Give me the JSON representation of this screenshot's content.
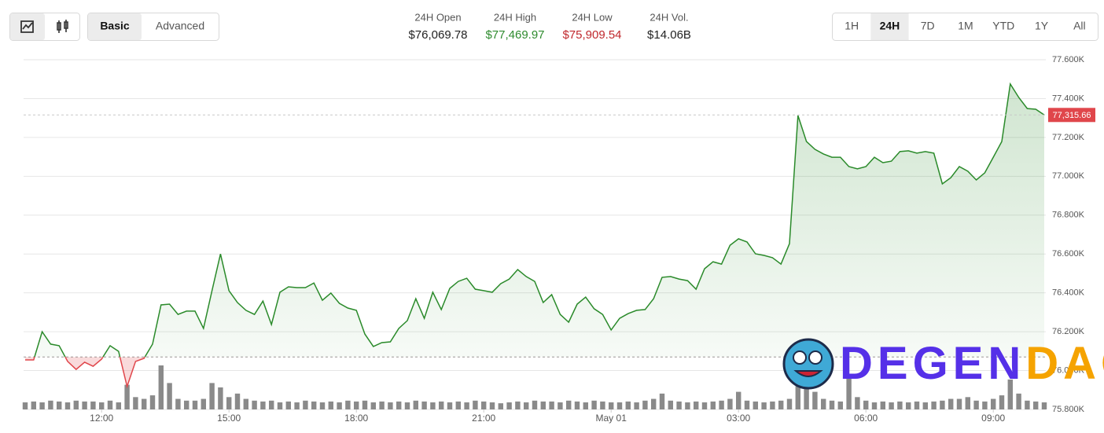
{
  "modes": [
    "Basic",
    "Advanced"
  ],
  "selected_mode": "Basic",
  "stats": [
    {
      "label": "24H Open",
      "value": 76069.78,
      "value_label": "$76,069.78",
      "color": "#222222"
    },
    {
      "label": "24H High",
      "value": 77469.97,
      "value_label": "$77,469.97",
      "color": "#2e8b2e"
    },
    {
      "label": "24H Low",
      "value": 75909.54,
      "value_label": "$75,909.54",
      "color": "#c0282d"
    },
    {
      "label": "24H Vol.",
      "value": 14060000000,
      "value_label": "$14.06B",
      "color": "#222222"
    }
  ],
  "ranges": [
    "1H",
    "24H",
    "7D",
    "1M",
    "YTD",
    "1Y",
    "All"
  ],
  "selected_range": "24H",
  "watermark": [
    "DEGEN",
    "DAO!"
  ],
  "chart_data": {
    "type": "area",
    "x": [
      10.2,
      10.4,
      10.6,
      10.8,
      11.0,
      11.2,
      11.4,
      11.6,
      11.8,
      12.0,
      12.2,
      12.4,
      12.6,
      12.8,
      13.0,
      13.2,
      13.4,
      13.6,
      13.8,
      14.0,
      14.2,
      14.4,
      14.6,
      14.8,
      15.0,
      15.2,
      15.4,
      15.6,
      15.8,
      16.0,
      16.2,
      16.4,
      16.6,
      16.8,
      17.0,
      17.2,
      17.4,
      17.6,
      17.8,
      18.0,
      18.2,
      18.4,
      18.6,
      18.8,
      19.0,
      19.2,
      19.4,
      19.6,
      19.8,
      20.0,
      20.2,
      20.4,
      20.6,
      20.8,
      21.0,
      21.2,
      21.4,
      21.6,
      21.8,
      22.0,
      22.2,
      22.4,
      22.6,
      22.8,
      23.0,
      23.2,
      23.4,
      23.6,
      23.8,
      24.0,
      24.2,
      24.4,
      24.6,
      24.8,
      25.0,
      25.2,
      25.4,
      25.6,
      25.8,
      26.0,
      26.2,
      26.4,
      26.6,
      26.8,
      27.0,
      27.2,
      27.4,
      27.6,
      27.8,
      28.0,
      28.2,
      28.4,
      28.6,
      28.8,
      29.0,
      29.2,
      29.4,
      29.6,
      29.8,
      30.0,
      30.2,
      30.4,
      30.6,
      30.8,
      31.0,
      31.2,
      31.4,
      31.6,
      31.8,
      32.0,
      32.2,
      32.4,
      32.6,
      32.8,
      33.0,
      33.2,
      33.4,
      33.6,
      33.8,
      34.0,
      34.2
    ],
    "values": [
      76055,
      76055,
      76200,
      76136,
      76128,
      76047,
      76006,
      76043,
      76022,
      76059,
      76128,
      76099,
      75918,
      76047,
      76063,
      76136,
      76338,
      76342,
      76289,
      76306,
      76306,
      76217,
      76411,
      76600,
      76411,
      76350,
      76310,
      76289,
      76358,
      76237,
      76403,
      76431,
      76427,
      76427,
      76451,
      76362,
      76399,
      76346,
      76322,
      76310,
      76188,
      76124,
      76144,
      76148,
      76217,
      76257,
      76370,
      76269,
      76403,
      76314,
      76423,
      76459,
      76475,
      76419,
      76411,
      76403,
      76447,
      76471,
      76520,
      76484,
      76459,
      76350,
      76391,
      76289,
      76249,
      76342,
      76378,
      76318,
      76289,
      76209,
      76269,
      76293,
      76310,
      76314,
      76370,
      76480,
      76484,
      76471,
      76463,
      76419,
      76524,
      76560,
      76548,
      76645,
      76678,
      76662,
      76601,
      76593,
      76581,
      76548,
      76653,
      77313,
      77179,
      77139,
      77115,
      77098,
      77098,
      77050,
      77038,
      77050,
      77098,
      77070,
      77078,
      77127,
      77131,
      77119,
      77127,
      77119,
      76961,
      76993,
      77050,
      77026,
      76981,
      77018,
      77098,
      77179,
      77475,
      77406,
      77349,
      77345,
      77315.66
    ],
    "color": "#2a8a2a",
    "down_color": "#e0464b",
    "last_price": {
      "value": 77315.66,
      "label": "77,315.66"
    },
    "volume": [
      8,
      9,
      8,
      10,
      9,
      8,
      10,
      9,
      9,
      8,
      10,
      8,
      28,
      14,
      12,
      16,
      50,
      30,
      12,
      10,
      10,
      12,
      30,
      25,
      14,
      18,
      12,
      10,
      9,
      10,
      8,
      9,
      8,
      10,
      9,
      8,
      9,
      8,
      10,
      9,
      10,
      8,
      9,
      8,
      9,
      8,
      10,
      9,
      8,
      9,
      8,
      9,
      8,
      10,
      9,
      8,
      7,
      8,
      9,
      8,
      10,
      9,
      9,
      8,
      10,
      9,
      8,
      10,
      9,
      8,
      8,
      9,
      8,
      10,
      12,
      18,
      10,
      9,
      8,
      9,
      8,
      9,
      10,
      12,
      20,
      10,
      9,
      8,
      9,
      10,
      12,
      40,
      35,
      20,
      12,
      10,
      9,
      36,
      14,
      10,
      8,
      9,
      8,
      9,
      8,
      9,
      8,
      9,
      10,
      12,
      12,
      14,
      10,
      9,
      12,
      16,
      34,
      18,
      10,
      9,
      8
    ],
    "volume_color": "#8a8a8a",
    "xlim": [
      10.2,
      34.2
    ],
    "xticks": [
      {
        "value": 12,
        "label": "12:00"
      },
      {
        "value": 15,
        "label": "15:00"
      },
      {
        "value": 18,
        "label": "18:00"
      },
      {
        "value": 21,
        "label": "21:00"
      },
      {
        "value": 24,
        "label": "May 01"
      },
      {
        "value": 27,
        "label": "03:00"
      },
      {
        "value": 30,
        "label": "06:00"
      },
      {
        "value": 33,
        "label": "09:00"
      }
    ],
    "ylim": [
      75800,
      77600
    ],
    "yticks": [
      {
        "value": 75800,
        "label": "75.800K"
      },
      {
        "value": 76000,
        "label": "76.000K"
      },
      {
        "value": 76200,
        "label": "76.200K"
      },
      {
        "value": 76400,
        "label": "76.400K"
      },
      {
        "value": 76600,
        "label": "76.600K"
      },
      {
        "value": 76800,
        "label": "76.800K"
      },
      {
        "value": 77000,
        "label": "77.000K"
      },
      {
        "value": 77200,
        "label": "77.200K"
      },
      {
        "value": 77400,
        "label": "77.400K"
      },
      {
        "value": 77600,
        "label": "77.600K"
      }
    ],
    "grid": true
  }
}
